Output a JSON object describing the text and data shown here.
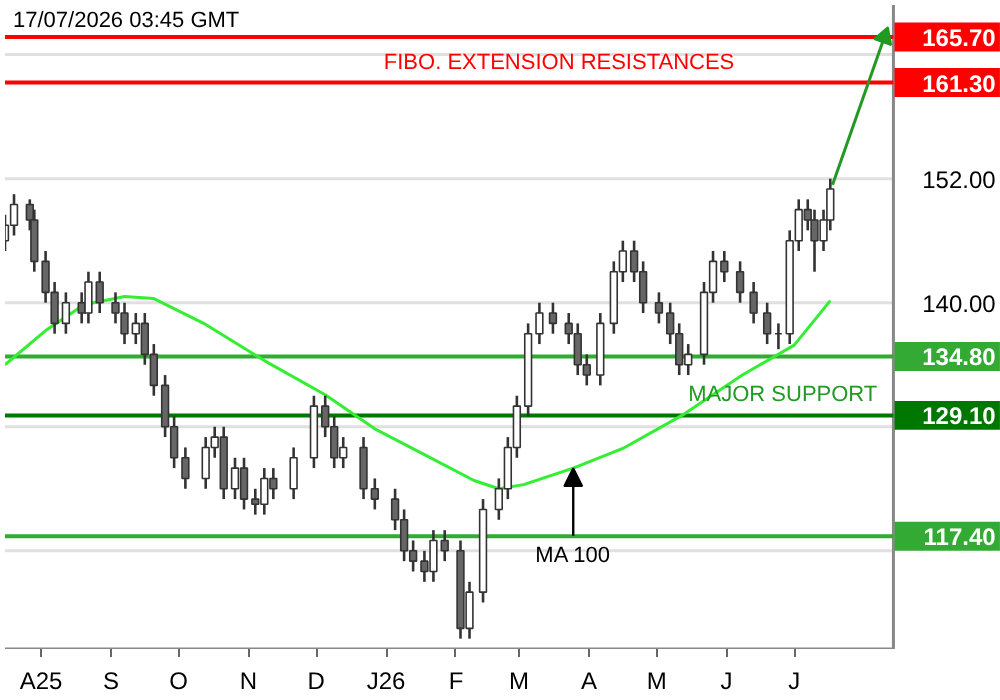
{
  "chart_data": {
    "type": "candlestick",
    "color": "#333333",
    "x": [
      "2025-07-16",
      "2025-07-20",
      "2025-07-27",
      "2025-07-29",
      "2025-08-03",
      "2025-08-07",
      "2025-08-12",
      "2025-08-19",
      "2025-08-22",
      "2025-08-27",
      "2025-09-03",
      "2025-09-07",
      "2025-09-12",
      "2025-09-16",
      "2025-09-20",
      "2025-09-25",
      "2025-09-29",
      "2025-10-04",
      "2025-10-13",
      "2025-10-17",
      "2025-10-21",
      "2025-10-26",
      "2025-10-30",
      "2025-11-04",
      "2025-11-08",
      "2025-11-12",
      "2025-11-21",
      "2025-11-30",
      "2025-12-05",
      "2025-12-09",
      "2025-12-13",
      "2025-12-22",
      "2025-12-27",
      "2026-01-05",
      "2026-01-09",
      "2026-01-13",
      "2026-01-18",
      "2026-01-22",
      "2026-01-27",
      "2026-02-03",
      "2026-02-07",
      "2026-02-13",
      "2026-02-20",
      "2026-02-24",
      "2026-02-28",
      "2026-03-05",
      "2026-03-10",
      "2026-03-16",
      "2026-03-23",
      "2026-03-27",
      "2026-03-31",
      "2026-04-06",
      "2026-04-12",
      "2026-04-16",
      "2026-04-21",
      "2026-04-25",
      "2026-05-02",
      "2026-05-07",
      "2026-05-11",
      "2026-05-15",
      "2026-05-22",
      "2026-05-26",
      "2026-05-31",
      "2026-06-07",
      "2026-06-13",
      "2026-06-19",
      "2026-06-24",
      "2026-06-29",
      "2026-07-03",
      "2026-07-07",
      "2026-07-10",
      "2026-07-14",
      "2026-07-17"
    ],
    "ohlc": [
      [
        146,
        148.5,
        145,
        147.5
      ],
      [
        147.5,
        150.5,
        146.5,
        149.5
      ],
      [
        149.5,
        150,
        147,
        148
      ],
      [
        148,
        149,
        143,
        144
      ],
      [
        144,
        145,
        140,
        141
      ],
      [
        141,
        142,
        137,
        138
      ],
      [
        138,
        141,
        137,
        140
      ],
      [
        140,
        141,
        138,
        139
      ],
      [
        139,
        143,
        138,
        142
      ],
      [
        142,
        143,
        139,
        140
      ],
      [
        140,
        141,
        138,
        139
      ],
      [
        139,
        140,
        136,
        137
      ],
      [
        137,
        139,
        136,
        138
      ],
      [
        138,
        139,
        134,
        135
      ],
      [
        135,
        136,
        131,
        132
      ],
      [
        132,
        133,
        127,
        128
      ],
      [
        128,
        129,
        124,
        125
      ],
      [
        125,
        126,
        122,
        123
      ],
      [
        123,
        127,
        122,
        126
      ],
      [
        126,
        128,
        125,
        127
      ],
      [
        127,
        128,
        121,
        122
      ],
      [
        122,
        125,
        121,
        124
      ],
      [
        124,
        125,
        120,
        121
      ],
      [
        121,
        122,
        119.5,
        120.5
      ],
      [
        120.5,
        124,
        119.5,
        123
      ],
      [
        123,
        124,
        121,
        122
      ],
      [
        122,
        126,
        121,
        125
      ],
      [
        125,
        131,
        124,
        130
      ],
      [
        130,
        131,
        127,
        128
      ],
      [
        128,
        129,
        124,
        125
      ],
      [
        125,
        127,
        124,
        126
      ],
      [
        126,
        127,
        121,
        122
      ],
      [
        122,
        123,
        120,
        121
      ],
      [
        121,
        122,
        118,
        119
      ],
      [
        119,
        120,
        115,
        116
      ],
      [
        116,
        117,
        114,
        115
      ],
      [
        115,
        116,
        113,
        114
      ],
      [
        114,
        118,
        113,
        117
      ],
      [
        117,
        118,
        115,
        116
      ],
      [
        116,
        117,
        107.5,
        108.5
      ],
      [
        108.5,
        113,
        107.5,
        112
      ],
      [
        112,
        121,
        111,
        120
      ],
      [
        120,
        123,
        119,
        122
      ],
      [
        122,
        127,
        121,
        126
      ],
      [
        126,
        131,
        125,
        130
      ],
      [
        130,
        138,
        129,
        137
      ],
      [
        137,
        140,
        136,
        139
      ],
      [
        139,
        140,
        137,
        138
      ],
      [
        138,
        139,
        136,
        137
      ],
      [
        137,
        138,
        133,
        134
      ],
      [
        134,
        135,
        132,
        133
      ],
      [
        133,
        139,
        132,
        138
      ],
      [
        138,
        144,
        137,
        143
      ],
      [
        143,
        146,
        142,
        145
      ],
      [
        145,
        146,
        142,
        143
      ],
      [
        143,
        144,
        139,
        140
      ],
      [
        140,
        141,
        138,
        139
      ],
      [
        139,
        140,
        136,
        137
      ],
      [
        137,
        138,
        133,
        134
      ],
      [
        134,
        136,
        133,
        135
      ],
      [
        135,
        142,
        134,
        141
      ],
      [
        141,
        145,
        140,
        144
      ],
      [
        144,
        145,
        142,
        143
      ],
      [
        143,
        144,
        140,
        141
      ],
      [
        141,
        142,
        138,
        139
      ],
      [
        139,
        140,
        136,
        137
      ],
      [
        137,
        138,
        135.5,
        137
      ],
      [
        137,
        147,
        136,
        146
      ],
      [
        146,
        150,
        145,
        149
      ],
      [
        149,
        150,
        147,
        148
      ],
      [
        148,
        149,
        143,
        146
      ],
      [
        146,
        149,
        145,
        148
      ],
      [
        148,
        152,
        147,
        151
      ]
    ],
    "series": [
      {
        "type": "line",
        "color": "#33ee33",
        "x": [
          "2025-07-16",
          "2025-08-03",
          "2025-08-20",
          "2025-09-07",
          "2025-09-20",
          "2025-10-13",
          "2025-11-08",
          "2025-12-05",
          "2025-12-27",
          "2026-01-18",
          "2026-02-09",
          "2026-02-20",
          "2026-03-03",
          "2026-03-25",
          "2026-04-16",
          "2026-05-13",
          "2026-06-08",
          "2026-07-01",
          "2026-07-17"
        ],
        "values": [
          134.0,
          137.3,
          139.8,
          140.6,
          140.4,
          137.9,
          134.4,
          131.1,
          127.8,
          125.3,
          122.8,
          122.0,
          122.4,
          124.0,
          125.9,
          129.2,
          133.0,
          135.9,
          140.2
        ]
      },
      {
        "type": "line",
        "color": "#229922",
        "marker": "triangle",
        "x": [
          "2026-07-18",
          "2026-08-10"
        ],
        "values": [
          151.4,
          165.7
        ]
      }
    ],
    "ref_lines": [
      {
        "axis": "y",
        "value": 165.7,
        "label": "165.70",
        "color": "#ff0000"
      },
      {
        "axis": "y",
        "value": 161.3,
        "label": "161.30",
        "color": "#ff0000"
      },
      {
        "axis": "y",
        "value": 134.8,
        "label": "134.80",
        "color": "#33aa33"
      },
      {
        "axis": "y",
        "value": 129.1,
        "label": "129.10",
        "color": "#007700"
      },
      {
        "axis": "y",
        "value": 117.4,
        "label": "117.40",
        "color": "#33aa33"
      }
    ],
    "annotations": [
      "17/07/2026 03:45 GMT",
      {
        "text": "FIBO. EXTENSION RESISTANCES",
        "x": "2025-12-31",
        "y": 161.3
      },
      {
        "text": "MAJOR SUPPORT",
        "x": "2026-05-15",
        "y": 129.1
      },
      {
        "text": "MA 100",
        "x": "2026-03-25",
        "y": 124.0
      }
    ],
    "xlim": [
      "2025-07-16",
      "2026-08-14"
    ],
    "ylim": [
      106.5,
      168.8
    ],
    "xticks": [
      {
        "value": "2025-08-01",
        "label": "A25"
      },
      {
        "value": "2025-09-01",
        "label": "S"
      },
      {
        "value": "2025-10-01",
        "label": "O"
      },
      {
        "value": "2025-11-01",
        "label": "N"
      },
      {
        "value": "2025-12-01",
        "label": "D"
      },
      {
        "value": "2026-01-01",
        "label": "J26"
      },
      {
        "value": "2026-02-01",
        "label": "F"
      },
      {
        "value": "2026-03-01",
        "label": "M"
      },
      {
        "value": "2026-04-01",
        "label": "A"
      },
      {
        "value": "2026-05-01",
        "label": "M"
      },
      {
        "value": "2026-06-01",
        "label": "J"
      },
      {
        "value": "2026-07-01",
        "label": "J"
      }
    ],
    "yticks": [
      {
        "value": 116,
        "label": null
      },
      {
        "value": 128,
        "label": null
      },
      {
        "value": 140,
        "label": "140.00"
      },
      {
        "value": 152,
        "label": "152.00"
      },
      {
        "value": 164,
        "label": null
      }
    ],
    "grid": "y"
  }
}
